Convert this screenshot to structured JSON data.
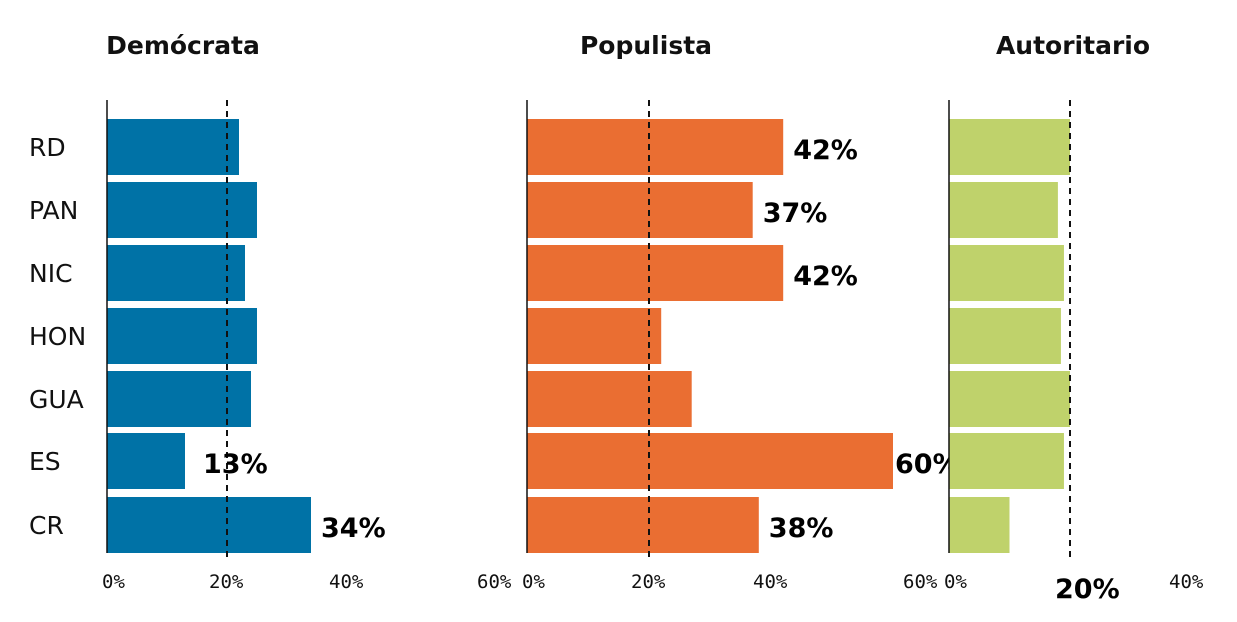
{
  "chart_data": {
    "type": "bar",
    "orientation": "horizontal",
    "categories": [
      "RD",
      "PAN",
      "NIC",
      "HON",
      "GUA",
      "ES",
      "CR"
    ],
    "reference_line": 20,
    "panels": [
      {
        "title": "Demócrata",
        "color": "#0072A6",
        "values": [
          22,
          25,
          23,
          25,
          24,
          13,
          34
        ],
        "data_labels": [
          "",
          "",
          "",
          "",
          "",
          "13%",
          "34%"
        ],
        "xlim": [
          0,
          60
        ],
        "ticks": [
          "0%",
          "20%",
          "40%",
          "60%"
        ]
      },
      {
        "title": "Populista",
        "color": "#EA6E32",
        "values": [
          42,
          37,
          42,
          22,
          27,
          60,
          38
        ],
        "data_labels": [
          "42%",
          "37%",
          "42%",
          "",
          "",
          "60%",
          "38%"
        ],
        "xlim": [
          0,
          60
        ],
        "ticks": [
          "0%",
          "20%",
          "40%",
          "60%"
        ]
      },
      {
        "title": "Autoritario",
        "color": "#BFD26B",
        "values": [
          20,
          18,
          19,
          18.5,
          20,
          19,
          10
        ],
        "data_labels": [
          "",
          "",
          "",
          "",
          "",
          "",
          ""
        ],
        "xlim": [
          0,
          40
        ],
        "ticks": [
          "0%",
          "20%",
          "40%"
        ],
        "highlight_tick": "20%"
      }
    ]
  }
}
